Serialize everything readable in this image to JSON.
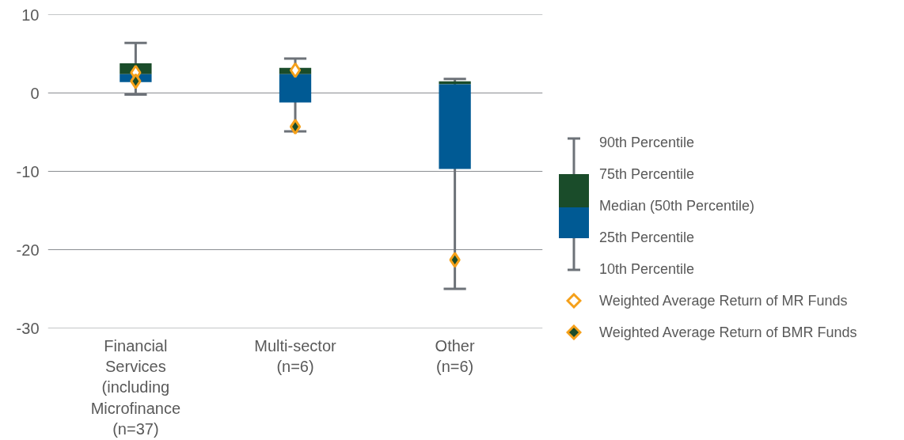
{
  "chart_data": {
    "type": "box",
    "categories": [
      "Financial\nServices\n(including\nMicrofinance\n(n=37)",
      "Multi-sector\n(n=6)",
      "Other\n(n=6)"
    ],
    "ylim": [
      -30,
      10
    ],
    "yticks": [
      -30,
      -20,
      -10,
      0,
      10
    ],
    "grid": "y",
    "legend": "right",
    "marker": "diamond",
    "annotations": [
      "90th Percentile",
      "75th Percentile",
      "Median (50th Percentile)",
      "25th Percentile",
      "10th Percentile"
    ],
    "series": [
      {
        "type": "box",
        "color": "#005a94",
        "boxes": [
          {
            "low": -0.2,
            "q1": 1.4,
            "median": 2.4,
            "q3": 3.8,
            "high": 6.4
          },
          {
            "low": -4.9,
            "q1": -1.2,
            "median": 2.4,
            "q3": 3.2,
            "high": 4.4
          },
          {
            "low": -25.0,
            "q1": -9.7,
            "median": 1.1,
            "q3": 1.5,
            "high": 1.8
          }
        ]
      },
      {
        "type": "scatter",
        "name": "Weighted Average Return of MR Funds",
        "color": "#ffffff",
        "x": [
          "Financial\nServices\n(including\nMicrofinance\n(n=37)",
          "Multi-sector\n(n=6)"
        ],
        "values": [
          2.6,
          2.9
        ]
      },
      {
        "type": "scatter",
        "name": "Weighted Average Return of BMR Funds",
        "color": "#1a4c2a",
        "x": [
          "Financial\nServices\n(including\nMicrofinance\n(n=37)",
          "Multi-sector\n(n=6)",
          "Other\n(n=6)"
        ],
        "values": [
          1.5,
          -4.3,
          -21.3
        ]
      }
    ]
  }
}
